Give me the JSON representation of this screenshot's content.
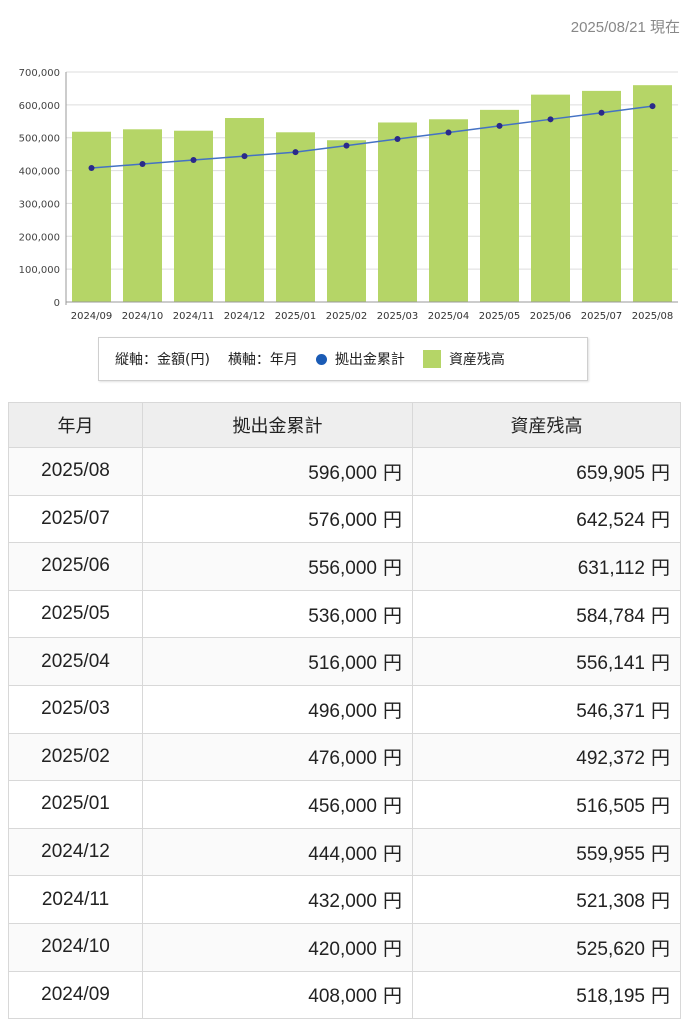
{
  "as_of": "2025/08/21 現在",
  "colors": {
    "bar": "#b5d567",
    "line": "#4472c4",
    "marker": "#2a2a8a",
    "legend_dot": "#1a5bb5",
    "grid": "#dddddd"
  },
  "chart_data": {
    "type": "bar",
    "categories": [
      "2024/09",
      "2024/10",
      "2024/11",
      "2024/12",
      "2025/01",
      "2025/02",
      "2025/03",
      "2025/04",
      "2025/05",
      "2025/06",
      "2025/07",
      "2025/08"
    ],
    "series": [
      {
        "name": "資産残高",
        "type": "bar",
        "values": [
          518195,
          525620,
          521308,
          559955,
          516505,
          492372,
          546371,
          556141,
          584784,
          631112,
          642524,
          659905
        ]
      },
      {
        "name": "拠出金累計",
        "type": "line",
        "values": [
          408000,
          420000,
          432000,
          444000,
          456000,
          476000,
          496000,
          516000,
          536000,
          556000,
          576000,
          596000
        ]
      }
    ],
    "ylim": [
      0,
      700000
    ],
    "yticks": [
      "0",
      "100,000",
      "200,000",
      "300,000",
      "400,000",
      "500,000",
      "600,000",
      "700,000"
    ],
    "grid": true,
    "legend_position": "bottom"
  },
  "legend": {
    "yaxis": "縦軸：金額(円)",
    "xaxis": "横軸：年月",
    "line_label": "拠出金累計",
    "bar_label": "資産残高"
  },
  "table": {
    "headers": [
      "年月",
      "拠出金累計",
      "資産残高"
    ],
    "unit": "円",
    "rows": [
      {
        "ym": "2025/08",
        "contrib": "596,000",
        "balance": "659,905"
      },
      {
        "ym": "2025/07",
        "contrib": "576,000",
        "balance": "642,524"
      },
      {
        "ym": "2025/06",
        "contrib": "556,000",
        "balance": "631,112"
      },
      {
        "ym": "2025/05",
        "contrib": "536,000",
        "balance": "584,784"
      },
      {
        "ym": "2025/04",
        "contrib": "516,000",
        "balance": "556,141"
      },
      {
        "ym": "2025/03",
        "contrib": "496,000",
        "balance": "546,371"
      },
      {
        "ym": "2025/02",
        "contrib": "476,000",
        "balance": "492,372"
      },
      {
        "ym": "2025/01",
        "contrib": "456,000",
        "balance": "516,505"
      },
      {
        "ym": "2024/12",
        "contrib": "444,000",
        "balance": "559,955"
      },
      {
        "ym": "2024/11",
        "contrib": "432,000",
        "balance": "521,308"
      },
      {
        "ym": "2024/10",
        "contrib": "420,000",
        "balance": "525,620"
      },
      {
        "ym": "2024/09",
        "contrib": "408,000",
        "balance": "518,195"
      }
    ]
  }
}
